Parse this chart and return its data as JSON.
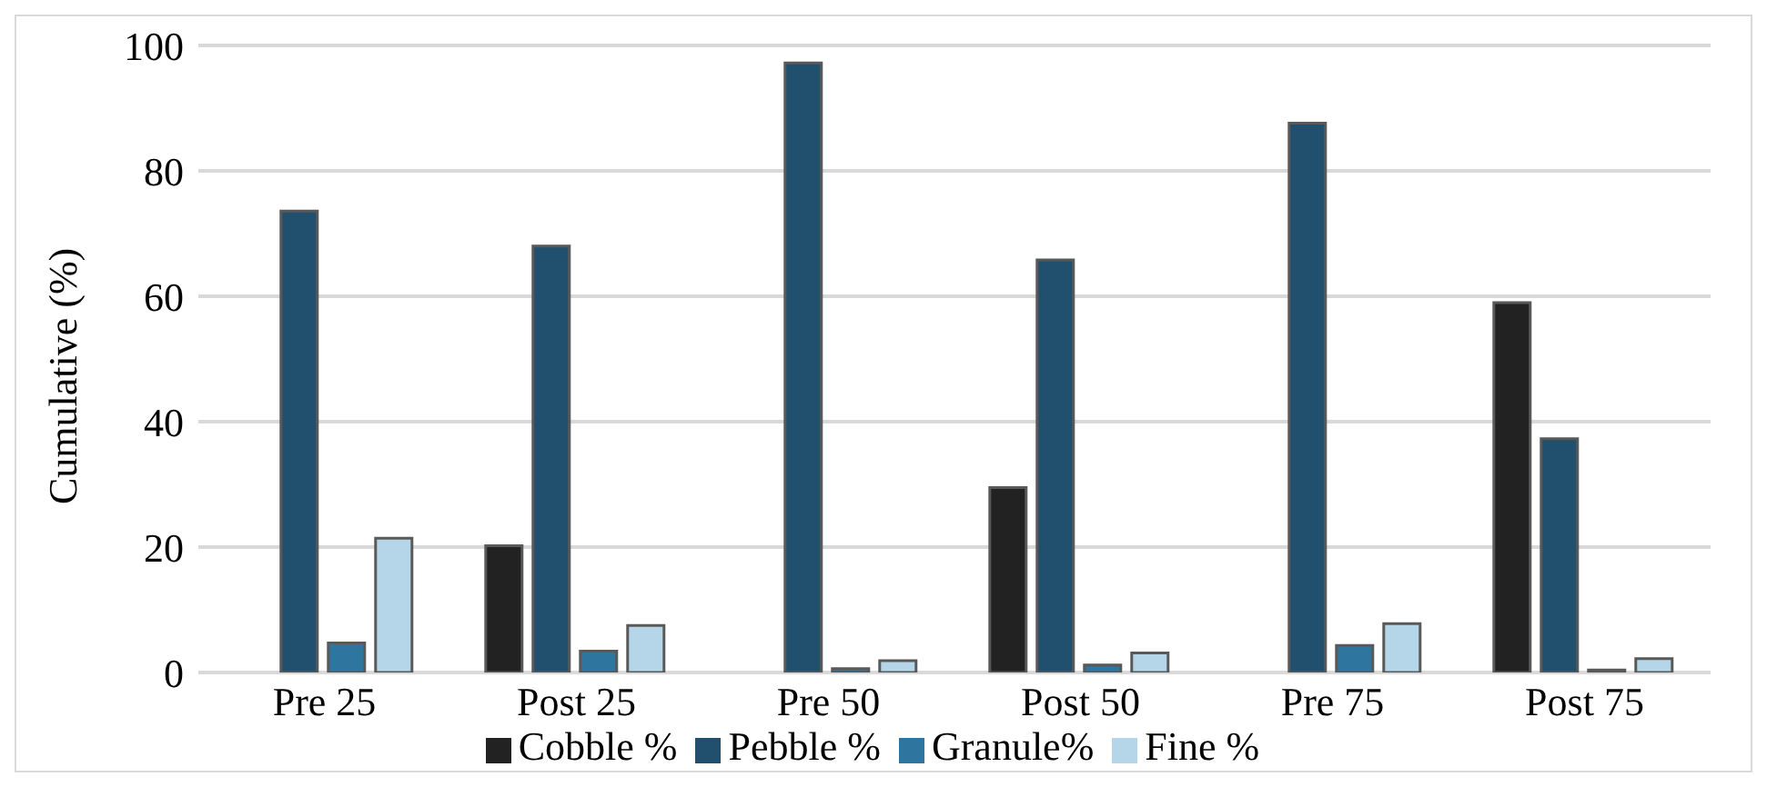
{
  "chart_data": {
    "type": "bar",
    "ylabel": "Cumulative (%)",
    "categories": [
      "Pre 25",
      "Post 25",
      "Pre 50",
      "Post 50",
      "Pre 75",
      "Post 75"
    ],
    "series": [
      {
        "name": "Cobble %",
        "color": "#222222",
        "values": [
          0,
          20.2,
          0,
          29.5,
          0,
          59
        ]
      },
      {
        "name": "Pebble %",
        "color": "#20506e",
        "values": [
          73.6,
          68,
          97.2,
          65.8,
          87.6,
          37.3
        ]
      },
      {
        "name": "Granule%",
        "color": "#2e75a0",
        "values": [
          4.7,
          3.4,
          0.6,
          1.2,
          4.3,
          0.4
        ]
      },
      {
        "name": "Fine %",
        "color": "#b5d6e8",
        "values": [
          21.4,
          7.5,
          1.9,
          3.1,
          7.8,
          2.2
        ]
      }
    ],
    "ylim": [
      0,
      100
    ],
    "yticks": [
      0,
      20,
      40,
      60,
      80,
      100
    ],
    "grid": "y",
    "legend": "bottom"
  }
}
